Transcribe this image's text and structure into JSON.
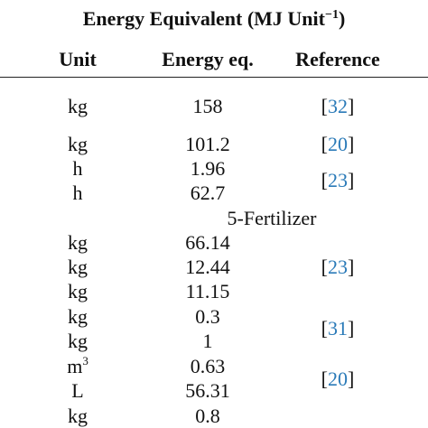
{
  "table": {
    "group_header": "Energy Equivalent (MJ Unit",
    "group_header_exp": "−1",
    "group_header_close": ")",
    "columns": {
      "unit": "Unit",
      "energy": "Energy eq.",
      "reference": "Reference"
    },
    "section_label": "5-Fertilizer",
    "rows": [
      {
        "unit": "kg",
        "energy": "158"
      },
      {
        "unit": "kg",
        "energy": "101.2"
      },
      {
        "unit": "h",
        "energy": "1.96"
      },
      {
        "unit": "h",
        "energy": "62.7"
      },
      {
        "unit": "kg",
        "energy": "66.14"
      },
      {
        "unit": "kg",
        "energy": "12.44"
      },
      {
        "unit": "kg",
        "energy": "11.15"
      },
      {
        "unit": "kg",
        "energy": "0.3"
      },
      {
        "unit": "kg",
        "energy": "1"
      },
      {
        "unit": "m",
        "unit_exp": "3",
        "energy": "0.63"
      },
      {
        "unit": "L",
        "energy": "56.31"
      },
      {
        "unit": "kg",
        "energy": "0.8"
      }
    ],
    "references": [
      {
        "open": "[",
        "num": "32",
        "close": "]"
      },
      {
        "open": "[",
        "num": "20",
        "close": "]"
      },
      {
        "open": "[",
        "num": "23",
        "close": "]"
      },
      {
        "open": "[",
        "num": "23",
        "close": "]"
      },
      {
        "open": "[",
        "num": "31",
        "close": "]"
      },
      {
        "open": "[",
        "num": "20",
        "close": "]"
      }
    ]
  }
}
